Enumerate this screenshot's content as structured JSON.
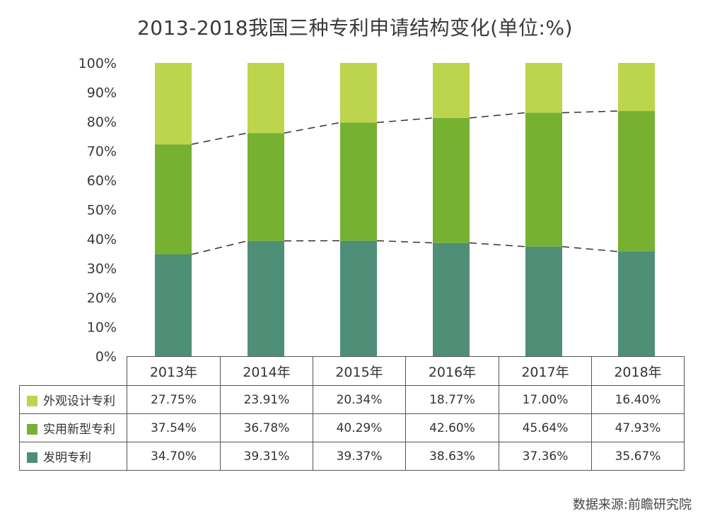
{
  "title": "2013-2018我国三种专利申请结构变化(单位:%)",
  "source": "数据来源:前瞻研究院",
  "chart_data": {
    "type": "bar",
    "stacked": true,
    "normalized_percent": true,
    "categories": [
      "2013年",
      "2014年",
      "2015年",
      "2016年",
      "2017年",
      "2018年"
    ],
    "series": [
      {
        "name": "发明专利",
        "color": "#4f8f78",
        "values": [
          34.7,
          39.31,
          39.37,
          38.63,
          37.36,
          35.67
        ],
        "labels": [
          "34.70%",
          "39.31%",
          "39.37%",
          "38.63%",
          "37.36%",
          "35.67%"
        ]
      },
      {
        "name": "实用新型专利",
        "color": "#77b132",
        "values": [
          37.54,
          36.78,
          40.29,
          42.6,
          45.64,
          47.93
        ],
        "labels": [
          "37.54%",
          "36.78%",
          "40.29%",
          "42.60%",
          "45.64%",
          "47.93%"
        ]
      },
      {
        "name": "外观设计专利",
        "color": "#bdd44d",
        "values": [
          27.75,
          23.91,
          20.34,
          18.77,
          17.0,
          16.4
        ],
        "labels": [
          "27.75%",
          "23.91%",
          "20.34%",
          "18.77%",
          "17.00%",
          "16.40%"
        ]
      }
    ],
    "table_row_order": [
      "外观设计专利",
      "实用新型专利",
      "发明专利"
    ],
    "y_ticks": [
      "0%",
      "10%",
      "20%",
      "30%",
      "40%",
      "50%",
      "60%",
      "70%",
      "80%",
      "90%",
      "100%"
    ],
    "ylim": [
      0,
      100
    ],
    "grid": false,
    "connector_lines": "dashed lines joining series boundaries across bars"
  }
}
